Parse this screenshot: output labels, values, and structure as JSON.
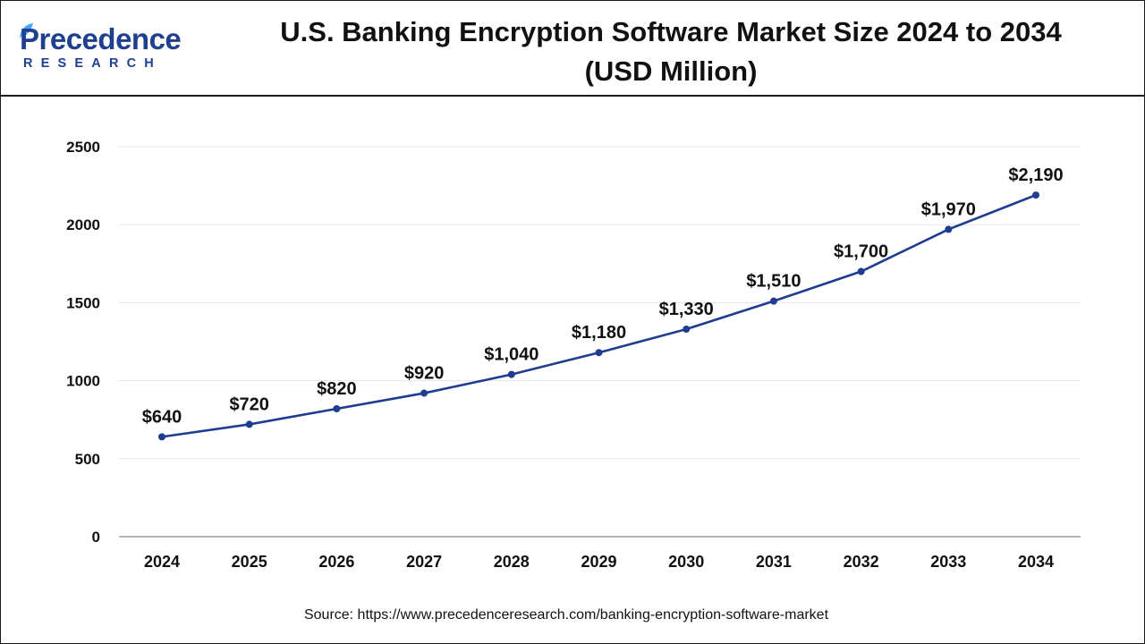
{
  "brand": {
    "name": "Precedence",
    "sub": "RESEARCH",
    "color": "#1f3f8f"
  },
  "header": {
    "title_line1": "U.S. Banking Encryption Software Market Size 2024 to 2034",
    "title_line2": "(USD Million)"
  },
  "footer": {
    "source": "Source: https://www.precedenceresearch.com/banking-encryption-software-market"
  },
  "chart_data": {
    "type": "line",
    "title": "U.S. Banking Encryption Software Market Size 2024 to 2034 (USD Million)",
    "xlabel": "",
    "ylabel": "",
    "x": [
      "2024",
      "2025",
      "2026",
      "2027",
      "2028",
      "2029",
      "2030",
      "2031",
      "2032",
      "2033",
      "2034"
    ],
    "series": [
      {
        "values": [
          640,
          720,
          820,
          920,
          1040,
          1180,
          1330,
          1510,
          1700,
          1970,
          2190
        ],
        "labels": [
          "$640",
          "$720",
          "$820",
          "$920",
          "$1,040",
          "$1,180",
          "$1,330",
          "$1,510",
          "$1,700",
          "$1,970",
          "$2,190"
        ],
        "color": "#1f3c91"
      }
    ],
    "ylim": [
      0,
      2500
    ],
    "yticks": [
      0,
      500,
      1000,
      1500,
      2000,
      2500
    ],
    "grid": true,
    "gridColor": "#e6e6e6",
    "legend": "none"
  }
}
